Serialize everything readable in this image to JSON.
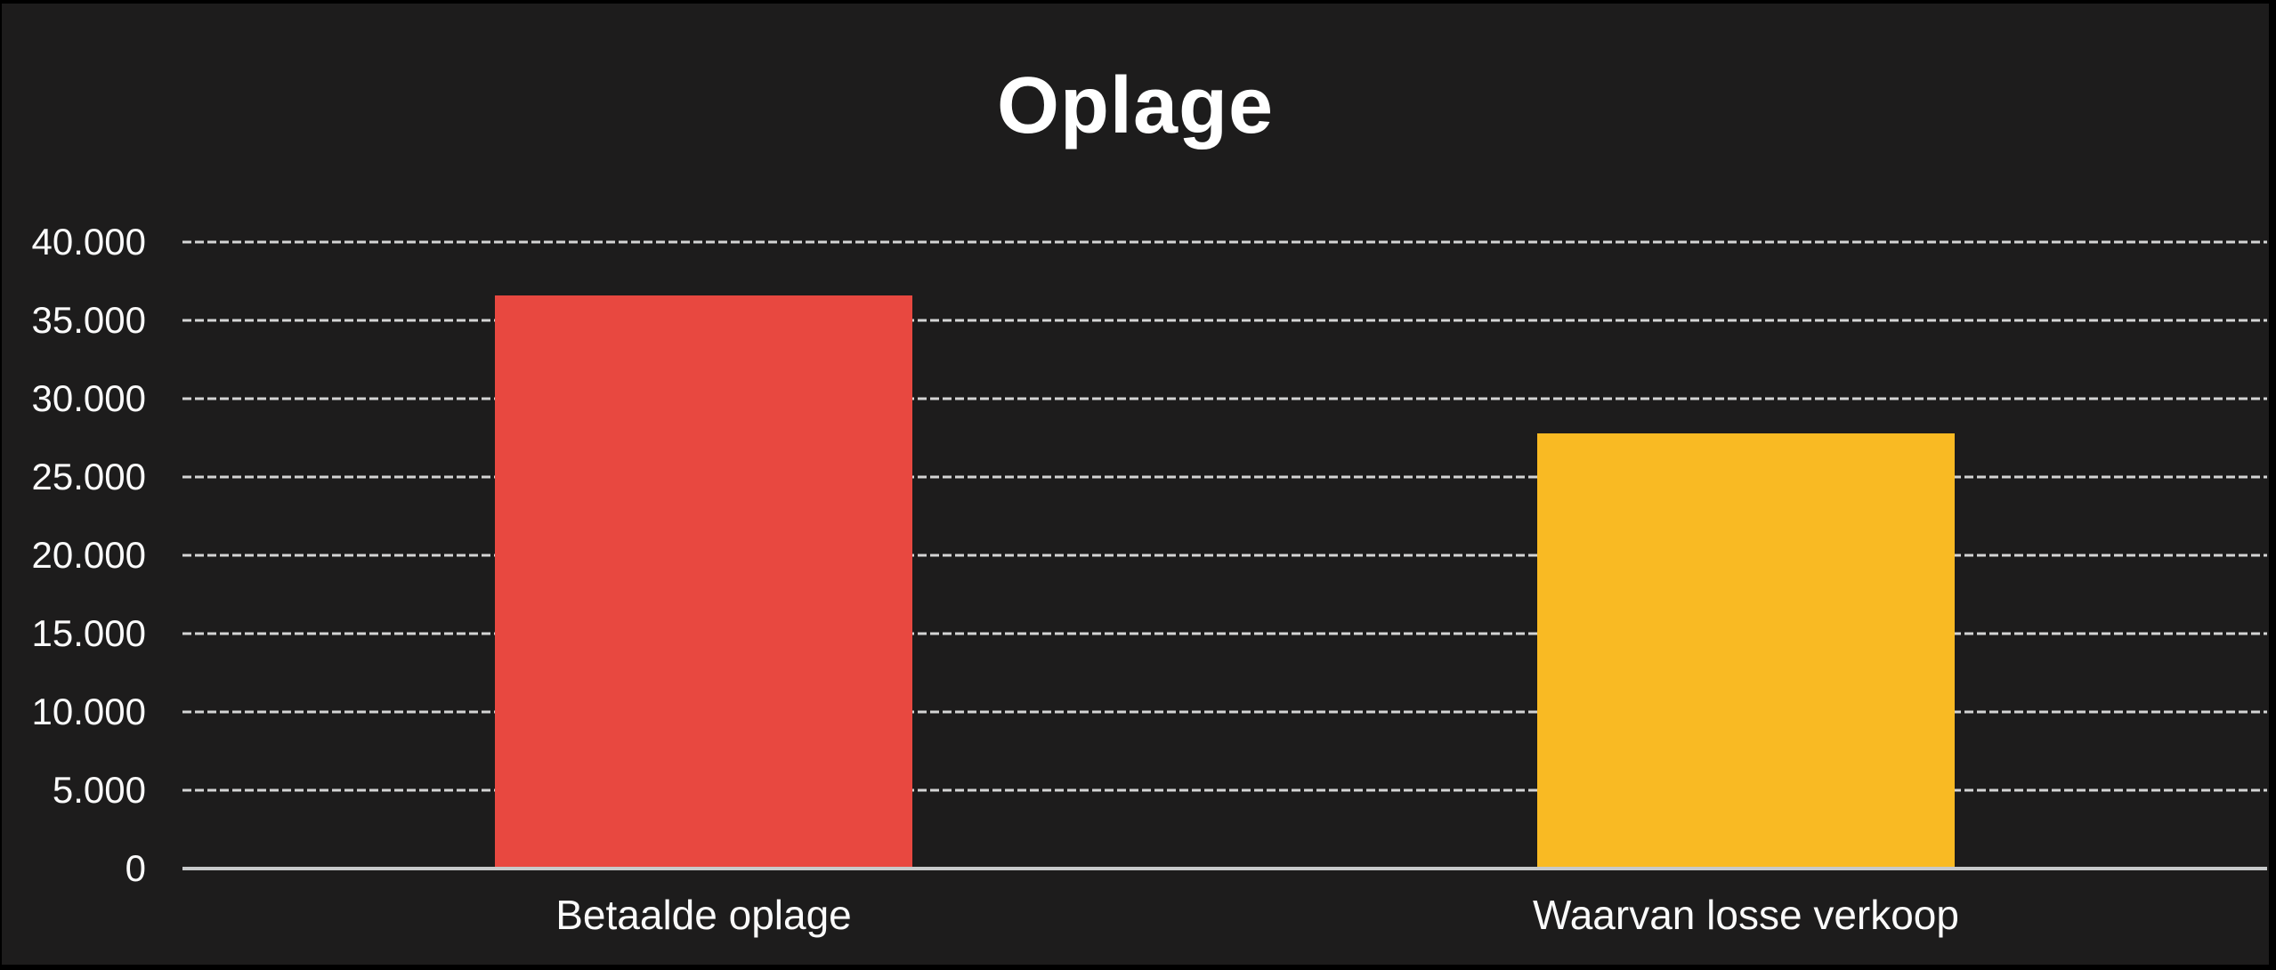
{
  "chart_data": {
    "type": "bar",
    "title": "Oplage",
    "categories": [
      "Betaalde oplage",
      "Waarvan losse verkoop"
    ],
    "values": [
      36600,
      27800
    ],
    "bar_colors": [
      "#e84840",
      "#f9ba23"
    ],
    "ylim": [
      0,
      40000
    ],
    "ytick_step": 5000,
    "ytick_labels": [
      "40.000",
      "35.000",
      "30.000",
      "25.000",
      "20.000",
      "15.000",
      "10.000",
      "5.000",
      "0"
    ],
    "xlabel": "",
    "ylabel": "",
    "legend": "none",
    "grid": "horizontal-dashed",
    "colors": {
      "background": "#1d1c1c",
      "frame_border": "#000000",
      "gridline": "#d4d4d4",
      "axis_line": "#c7c9ca",
      "text": "#ffffff"
    }
  }
}
